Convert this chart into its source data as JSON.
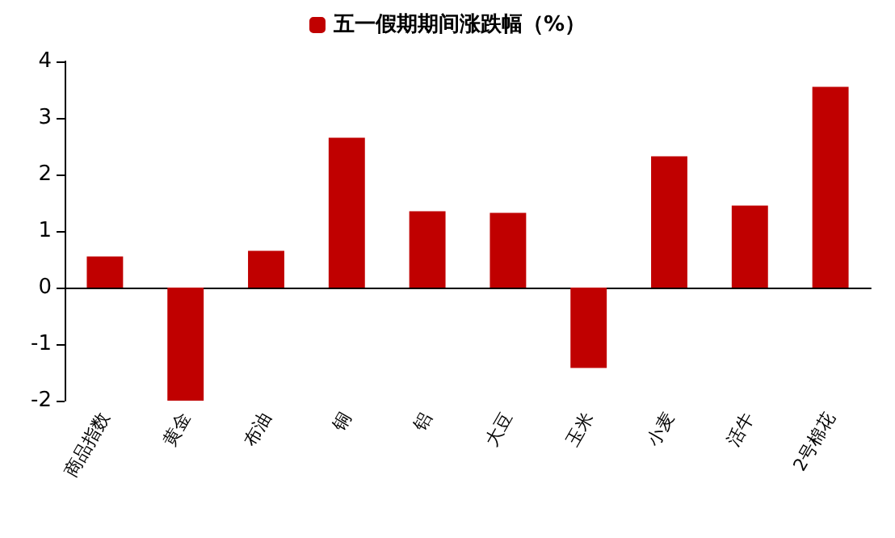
{
  "chart_data": {
    "type": "bar",
    "categories": [
      "商品指数",
      "黄金",
      "布油",
      "铜",
      "铝",
      "大豆",
      "玉米",
      "小麦",
      "活牛",
      "2号棉花"
    ],
    "series": [
      {
        "name": "五一假期期间涨跌幅（%）",
        "color": "#c00000",
        "values": [
          0.55,
          -2.0,
          0.65,
          2.65,
          1.35,
          1.32,
          -1.42,
          2.32,
          1.45,
          3.55
        ]
      }
    ],
    "ylim": [
      -2,
      4
    ],
    "yticks": [
      -2,
      -1,
      0,
      1,
      2,
      3,
      4
    ],
    "legend": "top"
  }
}
